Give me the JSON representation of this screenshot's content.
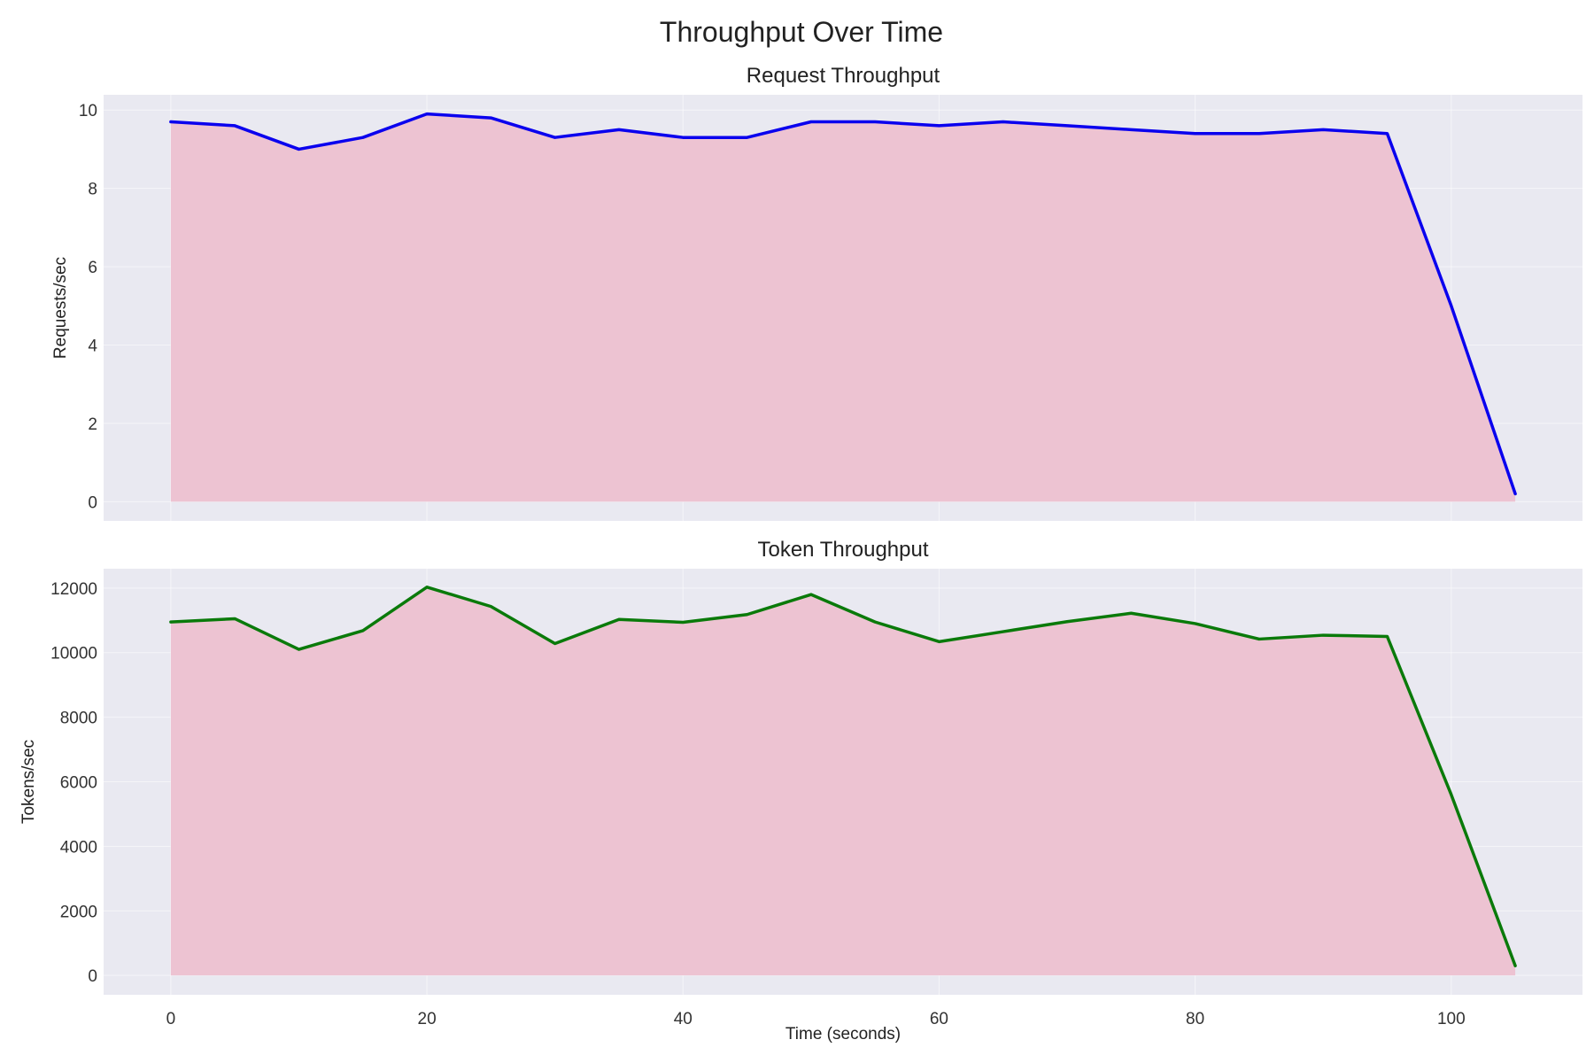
{
  "chart_data": {
    "type": "area",
    "title": "Throughput Over Time",
    "fill_color": "#edc3d2",
    "background": "#e9e9f1",
    "shared_x": {
      "label": "Time (seconds)",
      "ticks": [
        0,
        20,
        40,
        60,
        80,
        100
      ],
      "xlim": [
        -5.25,
        110.25
      ]
    },
    "x": [
      0,
      5,
      10,
      15,
      20,
      25,
      30,
      35,
      40,
      45,
      50,
      55,
      60,
      65,
      70,
      75,
      80,
      85,
      90,
      95,
      100,
      105
    ],
    "subplots": [
      {
        "title": "Request Throughput",
        "ylabel": "Requests/sec",
        "ylim": [
          -0.49,
          10.39
        ],
        "yticks": [
          0,
          2,
          4,
          6,
          8,
          10
        ],
        "grid": true,
        "series": [
          {
            "color": "#0a00ee",
            "values": [
              9.7,
              9.6,
              9.0,
              9.3,
              9.9,
              9.8,
              9.3,
              9.5,
              9.3,
              9.3,
              9.7,
              9.7,
              9.6,
              9.7,
              9.6,
              9.5,
              9.4,
              9.4,
              9.5,
              9.4,
              5.0,
              0.2
            ]
          }
        ]
      },
      {
        "title": "Token Throughput",
        "ylabel": "Tokens/sec",
        "ylim": [
          -600,
          12600
        ],
        "yticks": [
          0,
          2000,
          4000,
          6000,
          8000,
          10000,
          12000
        ],
        "grid": true,
        "series": [
          {
            "color": "#0a7a0a",
            "values": [
              10950,
              11050,
              10100,
              10680,
              12030,
              11430,
              10280,
              11030,
              10940,
              11180,
              11800,
              10950,
              10340,
              10650,
              10960,
              11220,
              10900,
              10420,
              10540,
              10500,
              5600,
              300
            ]
          }
        ]
      }
    ]
  }
}
